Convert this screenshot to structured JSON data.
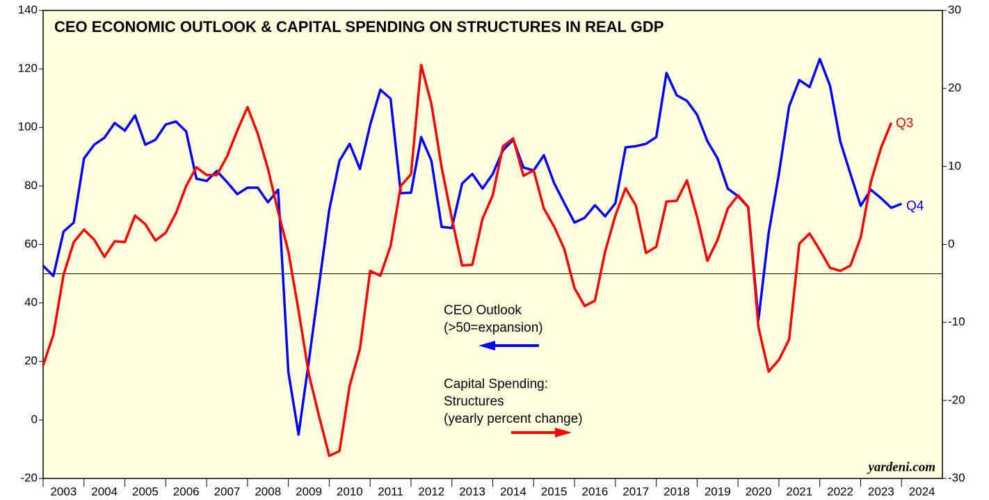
{
  "chart_data": {
    "type": "line",
    "title": "CEO ECONOMIC OUTLOOK & CAPITAL SPENDING ON STRUCTURES IN REAL GDP",
    "x": [
      2003,
      2003.25,
      2003.5,
      2003.75,
      2004,
      2004.25,
      2004.5,
      2004.75,
      2005,
      2005.25,
      2005.5,
      2005.75,
      2006,
      2006.25,
      2006.5,
      2006.75,
      2007,
      2007.25,
      2007.5,
      2007.75,
      2008,
      2008.25,
      2008.5,
      2008.75,
      2009,
      2009.25,
      2009.5,
      2009.75,
      2010,
      2010.25,
      2010.5,
      2010.75,
      2011,
      2011.25,
      2011.5,
      2011.75,
      2012,
      2012.25,
      2012.5,
      2012.75,
      2013,
      2013.25,
      2013.5,
      2013.75,
      2014,
      2014.25,
      2014.5,
      2014.75,
      2015,
      2015.25,
      2015.5,
      2015.75,
      2016,
      2016.25,
      2016.5,
      2016.75,
      2017,
      2017.25,
      2017.5,
      2017.75,
      2018,
      2018.25,
      2018.5,
      2018.75,
      2019,
      2019.25,
      2019.5,
      2019.75,
      2020,
      2020.25,
      2020.5,
      2020.75,
      2021,
      2021.25,
      2021.5,
      2021.75,
      2022,
      2022.25,
      2022.5,
      2022.75,
      2023,
      2023.25,
      2023.5,
      2023.75,
      2024
    ],
    "series": [
      {
        "name": "CEO Outlook",
        "color": "#0000ff",
        "values": [
          52.7,
          49.2,
          64.4,
          67.5,
          89.4,
          94.1,
          96.5,
          101.5,
          98.9,
          104.1,
          94.1,
          95.8,
          101,
          102,
          98.6,
          82.5,
          81.7,
          85.1,
          81.3,
          77.2,
          79.4,
          79.4,
          74.4,
          78.7,
          16.4,
          -5,
          20,
          46,
          71.8,
          88.6,
          94.4,
          85.8,
          100.8,
          112.9,
          109.8,
          77.5,
          77.7,
          96.7,
          88.6,
          66,
          65.6,
          80.8,
          84.1,
          79.1,
          84.1,
          92.2,
          95.8,
          86.3,
          85.3,
          90.5,
          81,
          74.1,
          67.5,
          69.1,
          73.4,
          69.6,
          74.1,
          93.2,
          93.6,
          94.4,
          96.7,
          118.6,
          111,
          109.1,
          104.3,
          95.3,
          89.4,
          79.1,
          76.5,
          72.7,
          34.2,
          63.9,
          84.1,
          107.2,
          116.2,
          113.8,
          123.4,
          114.3,
          95.3,
          84.1,
          73.2,
          78.7,
          75.8,
          72.5,
          73.9
        ]
      },
      {
        "name": "Capital Spending: Structures",
        "color": "#ff0000",
        "axis": "y2",
        "values": [
          -15.5,
          -11.6,
          -3.9,
          0.3,
          1.9,
          0.6,
          -1.6,
          0.4,
          0.3,
          3.7,
          2.6,
          0.5,
          1.5,
          4.0,
          7.5,
          9.9,
          8.9,
          8.9,
          11.3,
          14.6,
          17.6,
          14.2,
          9.7,
          4.2,
          -0.9,
          -8.5,
          -16.6,
          -22,
          -27.1,
          -26.5,
          -18.1,
          -13.4,
          -3.4,
          -4.0,
          -0.2,
          7.5,
          9.0,
          23.0,
          18.0,
          9.9,
          3.3,
          -2.7,
          -2.6,
          3.3,
          6.3,
          12.6,
          13.6,
          8.8,
          9.5,
          4.6,
          2.3,
          -0.6,
          -5.6,
          -7.9,
          -7.2,
          -0.9,
          3.7,
          7.2,
          5.0,
          -1.1,
          -0.3,
          5.5,
          5.6,
          8.2,
          3.5,
          -2.1,
          0.6,
          4.6,
          6.3,
          4.8,
          -10.6,
          -16.3,
          -14.8,
          -12.2,
          0.1,
          1.4,
          -0.7,
          -3.0,
          -3.4,
          -2.7,
          0.9,
          8.0,
          12.4,
          15.6,
          null
        ]
      }
    ],
    "xlim": [
      2003,
      2025
    ],
    "xticks": [
      2003,
      2004,
      2005,
      2006,
      2007,
      2008,
      2009,
      2010,
      2011,
      2012,
      2013,
      2014,
      2015,
      2016,
      2017,
      2018,
      2019,
      2020,
      2021,
      2022,
      2023,
      2024
    ],
    "ylim": [
      -20,
      140
    ],
    "yticks": [
      -20,
      0,
      20,
      40,
      60,
      80,
      100,
      120,
      140
    ],
    "y2lim": [
      -30,
      30
    ],
    "y2ticks": [
      -30,
      -20,
      -10,
      0,
      10,
      20,
      30
    ],
    "hline": 50,
    "annotations": {
      "ceo": [
        "CEO Outlook",
        "(>50=expansion)"
      ],
      "capex": [
        "Capital Spending:",
        "Structures",
        "(yearly percent change)"
      ],
      "q_blue": "Q4",
      "q_red": "Q3",
      "source": "yardeni.com"
    },
    "background": "#ffffe0"
  }
}
